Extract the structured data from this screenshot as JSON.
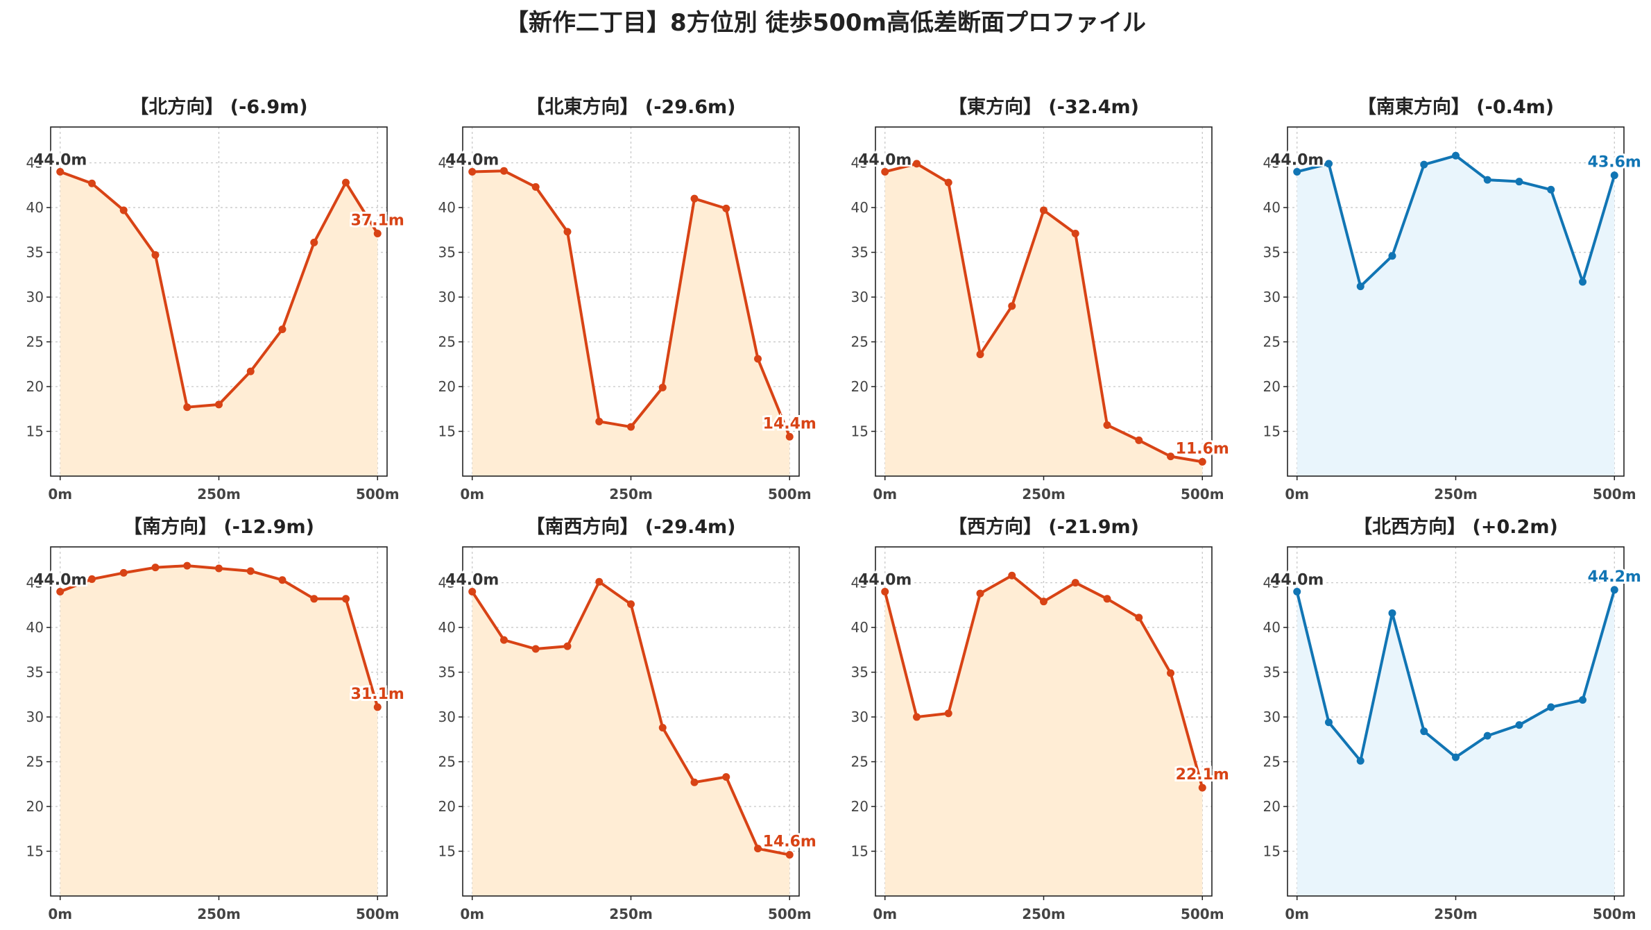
{
  "title": "【新作二丁目】8方位別 徒歩500m高低差断面プロファイル",
  "colors": {
    "down": "#d84315",
    "down_fill": "#ffedd5",
    "up": "#1175b4",
    "up_fill": "#e9f5fc",
    "start_label": "#333333"
  },
  "chart_data": [
    {
      "type": "area",
      "title": "【北方向】 (-6.9m)",
      "x": [
        0,
        50,
        100,
        150,
        200,
        250,
        300,
        350,
        400,
        450,
        500
      ],
      "y": [
        44.0,
        42.7,
        39.7,
        34.7,
        17.7,
        18.0,
        21.7,
        26.4,
        36.1,
        42.8,
        37.1
      ],
      "start_label": "44.0m",
      "end_label": "37.1m",
      "color_key": "down",
      "xticks": [
        "0m",
        "250m",
        "500m"
      ],
      "yticks": [
        15,
        20,
        25,
        30,
        35,
        40,
        45
      ],
      "xlim": [
        -15,
        515
      ],
      "ylim": [
        10,
        49
      ]
    },
    {
      "type": "area",
      "title": "【北東方向】 (-29.6m)",
      "x": [
        0,
        50,
        100,
        150,
        200,
        250,
        300,
        350,
        400,
        450,
        500
      ],
      "y": [
        44.0,
        44.1,
        42.3,
        37.3,
        16.1,
        15.5,
        19.9,
        41.0,
        39.9,
        23.1,
        14.4
      ],
      "start_label": "44.0m",
      "end_label": "14.4m",
      "color_key": "down",
      "xticks": [
        "0m",
        "250m",
        "500m"
      ],
      "yticks": [
        15,
        20,
        25,
        30,
        35,
        40,
        45
      ],
      "xlim": [
        -15,
        515
      ],
      "ylim": [
        10,
        49
      ]
    },
    {
      "type": "area",
      "title": "【東方向】 (-32.4m)",
      "x": [
        0,
        50,
        100,
        150,
        200,
        250,
        300,
        350,
        400,
        450,
        500
      ],
      "y": [
        44.0,
        44.9,
        42.8,
        23.6,
        29.0,
        39.7,
        37.1,
        15.7,
        14.0,
        12.2,
        11.6
      ],
      "start_label": "44.0m",
      "end_label": "11.6m",
      "color_key": "down",
      "xticks": [
        "0m",
        "250m",
        "500m"
      ],
      "yticks": [
        15,
        20,
        25,
        30,
        35,
        40,
        45
      ],
      "xlim": [
        -15,
        515
      ],
      "ylim": [
        10,
        49
      ]
    },
    {
      "type": "area",
      "title": "【南東方向】 (-0.4m)",
      "x": [
        0,
        50,
        100,
        150,
        200,
        250,
        300,
        350,
        400,
        450,
        500
      ],
      "y": [
        44.0,
        44.9,
        31.2,
        34.6,
        44.8,
        45.8,
        43.1,
        42.9,
        42.0,
        31.7,
        43.6
      ],
      "start_label": "44.0m",
      "end_label": "43.6m",
      "color_key": "up",
      "xticks": [
        "0m",
        "250m",
        "500m"
      ],
      "yticks": [
        15,
        20,
        25,
        30,
        35,
        40,
        45
      ],
      "xlim": [
        -15,
        515
      ],
      "ylim": [
        10,
        49
      ]
    },
    {
      "type": "area",
      "title": "【南方向】 (-12.9m)",
      "x": [
        0,
        50,
        100,
        150,
        200,
        250,
        300,
        350,
        400,
        450,
        500
      ],
      "y": [
        44.0,
        45.4,
        46.1,
        46.7,
        46.9,
        46.6,
        46.3,
        45.3,
        43.2,
        43.2,
        31.1
      ],
      "start_label": "44.0m",
      "end_label": "31.1m",
      "color_key": "down",
      "xticks": [
        "0m",
        "250m",
        "500m"
      ],
      "yticks": [
        15,
        20,
        25,
        30,
        35,
        40,
        45
      ],
      "xlim": [
        -15,
        515
      ],
      "ylim": [
        10,
        49
      ]
    },
    {
      "type": "area",
      "title": "【南西方向】 (-29.4m)",
      "x": [
        0,
        50,
        100,
        150,
        200,
        250,
        300,
        350,
        400,
        450,
        500
      ],
      "y": [
        44.0,
        38.6,
        37.6,
        37.9,
        45.1,
        42.6,
        28.8,
        22.7,
        23.3,
        15.3,
        14.6
      ],
      "start_label": "44.0m",
      "end_label": "14.6m",
      "color_key": "down",
      "xticks": [
        "0m",
        "250m",
        "500m"
      ],
      "yticks": [
        15,
        20,
        25,
        30,
        35,
        40,
        45
      ],
      "xlim": [
        -15,
        515
      ],
      "ylim": [
        10,
        49
      ]
    },
    {
      "type": "area",
      "title": "【西方向】 (-21.9m)",
      "x": [
        0,
        50,
        100,
        150,
        200,
        250,
        300,
        350,
        400,
        450,
        500
      ],
      "y": [
        44.0,
        30.0,
        30.4,
        43.8,
        45.8,
        42.9,
        45.0,
        43.2,
        41.1,
        34.9,
        22.1
      ],
      "start_label": "44.0m",
      "end_label": "22.1m",
      "color_key": "down",
      "xticks": [
        "0m",
        "250m",
        "500m"
      ],
      "yticks": [
        15,
        20,
        25,
        30,
        35,
        40,
        45
      ],
      "xlim": [
        -15,
        515
      ],
      "ylim": [
        10,
        49
      ]
    },
    {
      "type": "area",
      "title": "【北西方向】 (+0.2m)",
      "x": [
        0,
        50,
        100,
        150,
        200,
        250,
        300,
        350,
        400,
        450,
        500
      ],
      "y": [
        44.0,
        29.4,
        25.1,
        41.6,
        28.4,
        25.5,
        27.9,
        29.1,
        31.1,
        31.9,
        44.2
      ],
      "start_label": "44.0m",
      "end_label": "44.2m",
      "color_key": "up",
      "xticks": [
        "0m",
        "250m",
        "500m"
      ],
      "yticks": [
        15,
        20,
        25,
        30,
        35,
        40,
        45
      ],
      "xlim": [
        -15,
        515
      ],
      "ylim": [
        10,
        49
      ]
    }
  ]
}
